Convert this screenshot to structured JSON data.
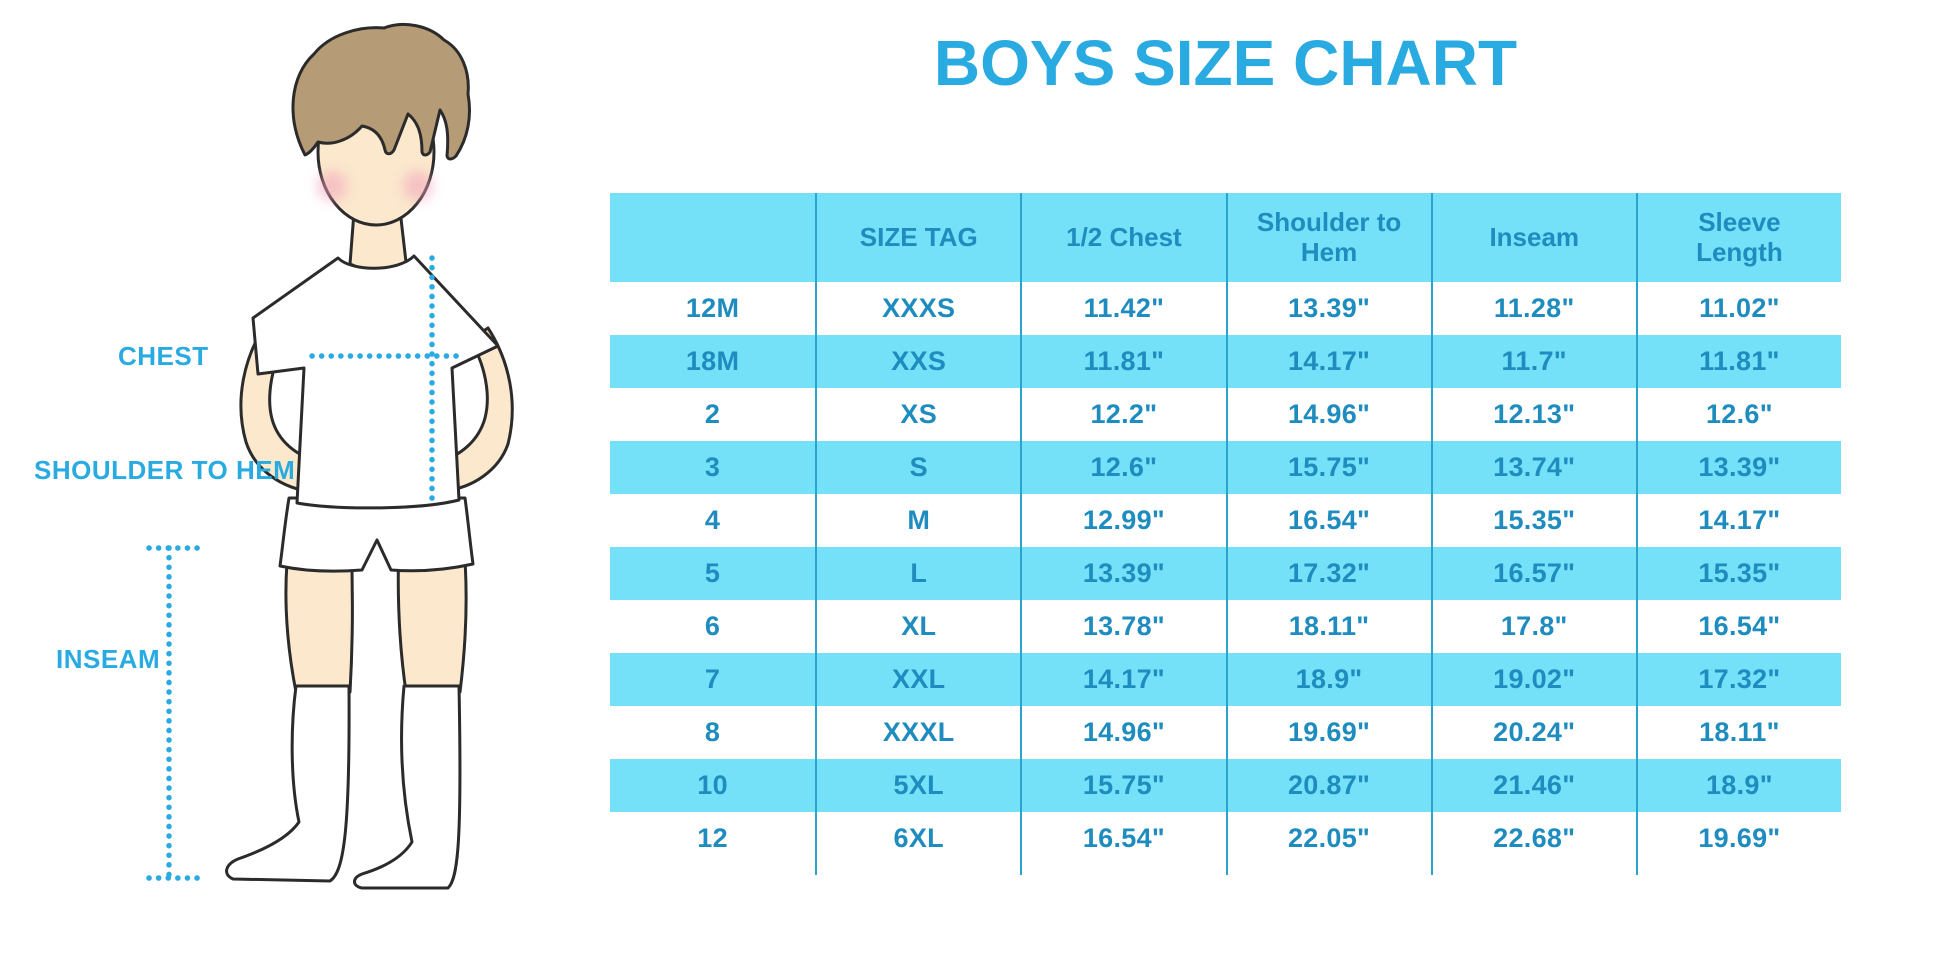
{
  "title": "BOYS SIZE CHART",
  "illustration": {
    "name": "boy-measurement-illustration",
    "labels": {
      "chest": "CHEST",
      "shoulder_to_hem": "SHOULDER TO HEM",
      "inseam": "INSEAM"
    }
  },
  "table": {
    "headers": [
      "",
      "SIZE TAG",
      "1/2 Chest",
      "Shoulder to Hem",
      "Inseam",
      "Sleeve Length"
    ],
    "rows": [
      [
        "12M",
        "XXXS",
        "11.42\"",
        "13.39\"",
        "11.28\"",
        "11.02\""
      ],
      [
        "18M",
        "XXS",
        "11.81\"",
        "14.17\"",
        "11.7\"",
        "11.81\""
      ],
      [
        "2",
        "XS",
        "12.2\"",
        "14.96\"",
        "12.13\"",
        "12.6\""
      ],
      [
        "3",
        "S",
        "12.6\"",
        "15.75\"",
        "13.74\"",
        "13.39\""
      ],
      [
        "4",
        "M",
        "12.99\"",
        "16.54\"",
        "15.35\"",
        "14.17\""
      ],
      [
        "5",
        "L",
        "13.39\"",
        "17.32\"",
        "16.57\"",
        "15.35\""
      ],
      [
        "6",
        "XL",
        "13.78\"",
        "18.11\"",
        "17.8\"",
        "16.54\""
      ],
      [
        "7",
        "XXL",
        "14.17\"",
        "18.9\"",
        "19.02\"",
        "17.32\""
      ],
      [
        "8",
        "XXXL",
        "14.96\"",
        "19.69\"",
        "20.24\"",
        "18.11\""
      ],
      [
        "10",
        "5XL",
        "15.75\"",
        "20.87\"",
        "21.46\"",
        "18.9\""
      ],
      [
        "12",
        "6XL",
        "16.54\"",
        "22.05\"",
        "22.68\"",
        "19.69\""
      ]
    ]
  },
  "colors": {
    "accent": "#29ABE2",
    "table_text": "#1E8CBE",
    "row_fill": "#74E1F8",
    "grid_line": "#2BA3CE",
    "skin": "#FBE8CD",
    "hair": "#B59B76",
    "blush": "#F2A3BB"
  }
}
